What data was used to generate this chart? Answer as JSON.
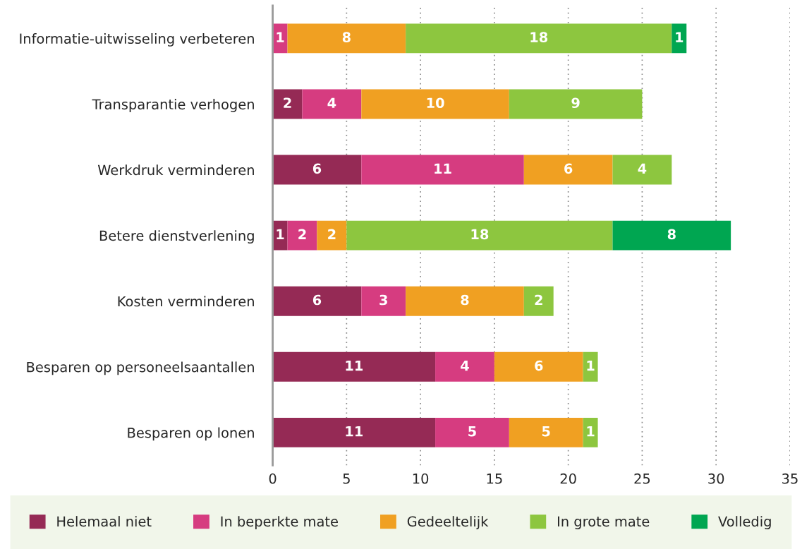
{
  "chart_data": {
    "type": "bar",
    "orientation": "horizontal",
    "stacked": true,
    "categories": [
      "Informatie-uitwisseling verbeteren",
      "Transparantie verhogen",
      "Werkdruk verminderen",
      "Betere dienstverlening",
      "Kosten verminderen",
      "Besparen op personeelsaantallen",
      "Besparen op lonen"
    ],
    "series": [
      {
        "name": "Helemaal niet",
        "color": "#952a55",
        "values": [
          null,
          2,
          6,
          1,
          6,
          11,
          11
        ]
      },
      {
        "name": "In beperkte mate",
        "color": "#d63c80",
        "values": [
          1,
          4,
          11,
          2,
          3,
          4,
          5
        ]
      },
      {
        "name": "Gedeeltelijk",
        "color": "#f0a022",
        "values": [
          8,
          10,
          6,
          2,
          8,
          6,
          5
        ]
      },
      {
        "name": "In grote mate",
        "color": "#8dc63f",
        "values": [
          18,
          9,
          4,
          18,
          2,
          1,
          1
        ]
      },
      {
        "name": "Volledig",
        "color": "#00a651",
        "values": [
          1,
          null,
          null,
          8,
          null,
          null,
          null
        ]
      }
    ],
    "xlim": [
      0,
      35
    ],
    "xticks": [
      0,
      5,
      10,
      15,
      20,
      25,
      30,
      35
    ],
    "grid": "x",
    "legend": "bottom",
    "data_labels": true
  }
}
